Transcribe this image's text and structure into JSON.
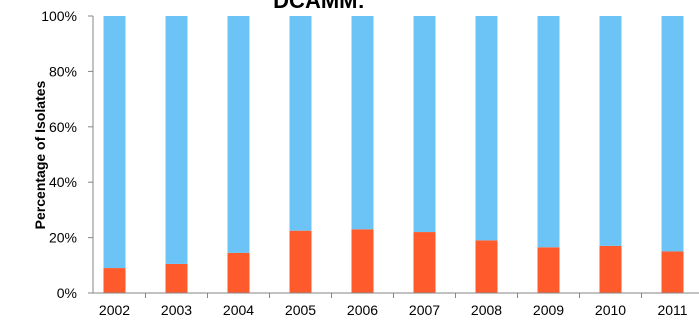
{
  "chart_data": {
    "type": "bar",
    "stacked": true,
    "title": "DCAMM:",
    "xlabel": "",
    "ylabel": "Percentage of Isolates",
    "ylim": [
      0,
      100
    ],
    "yticks": [
      "0%",
      "20%",
      "40%",
      "60%",
      "80%",
      "100%"
    ],
    "categories": [
      "2002",
      "2003",
      "2004",
      "2005",
      "2006",
      "2007",
      "2008",
      "2009",
      "2010",
      "2011"
    ],
    "series": [
      {
        "color": "#FF5A2C",
        "values": [
          9,
          10.5,
          14.5,
          22.5,
          23,
          22,
          19,
          16.5,
          17,
          15
        ]
      },
      {
        "color": "#6CC4F6",
        "values": [
          91,
          89.5,
          85.5,
          77.5,
          77,
          78,
          81,
          83.5,
          83,
          85
        ]
      }
    ],
    "grid": false,
    "legend": "none"
  }
}
